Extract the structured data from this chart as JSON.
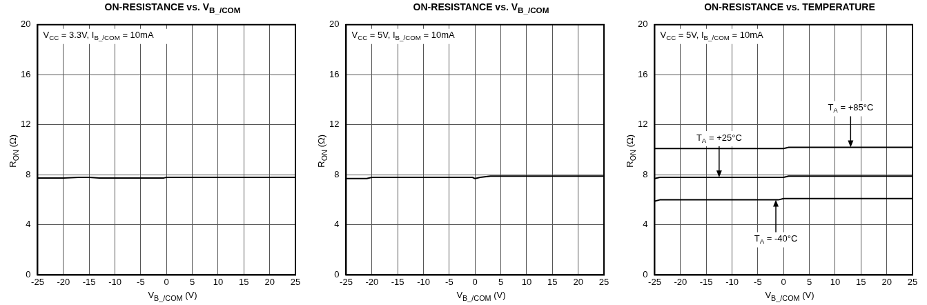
{
  "chart_data": [
    {
      "type": "line",
      "title": "ON-RESISTANCE vs. V$_{B_/COM}$",
      "xlabel": "V$_{B_/COM}$ (V)",
      "ylabel": "R$_{ON}$ (Ω)",
      "xlim": [
        -25,
        25
      ],
      "ylim": [
        0,
        20
      ],
      "xticks": [
        -25,
        -20,
        -15,
        -10,
        -5,
        0,
        5,
        10,
        15,
        20,
        25
      ],
      "yticks": [
        0,
        4,
        8,
        12,
        16,
        20
      ],
      "grid": true,
      "legend": false,
      "marker": "none",
      "x": [
        -25,
        -20,
        -17,
        -15,
        -13,
        -5,
        -0.5,
        0,
        25
      ],
      "series": [
        {
          "color": "#000000",
          "values": [
            7.75,
            7.75,
            7.8,
            7.8,
            7.75,
            7.75,
            7.75,
            7.8,
            7.8
          ]
        }
      ],
      "annotations": [
        "V$_{CC}$ = 3.3V, I$_{B_/COM}$ = 10mA"
      ]
    },
    {
      "type": "line",
      "title": "ON-RESISTANCE vs. V$_{B_/COM}$",
      "xlabel": "V$_{B_/COM}$ (V)",
      "ylabel": "R$_{ON}$ (Ω)",
      "xlim": [
        -25,
        25
      ],
      "ylim": [
        0,
        20
      ],
      "xticks": [
        -25,
        -20,
        -15,
        -10,
        -5,
        0,
        5,
        10,
        15,
        20,
        25
      ],
      "yticks": [
        0,
        4,
        8,
        12,
        16,
        20
      ],
      "grid": true,
      "legend": false,
      "marker": "none",
      "x": [
        -25,
        -21,
        -20,
        -0.5,
        0,
        1,
        3,
        25
      ],
      "series": [
        {
          "color": "#000000",
          "values": [
            7.7,
            7.7,
            7.8,
            7.8,
            7.7,
            7.8,
            7.9,
            7.9
          ]
        }
      ],
      "annotations": [
        "V$_{CC}$ = 5V, I$_{B_/COM}$ = 10mA"
      ]
    },
    {
      "type": "line",
      "title": "ON-RESISTANCE vs. TEMPERATURE",
      "xlabel": "V$_{B_/COM}$ (V)",
      "ylabel": "R$_{ON}$ (Ω)",
      "xlim": [
        -25,
        25
      ],
      "ylim": [
        0,
        20
      ],
      "xticks": [
        -25,
        -20,
        -15,
        -10,
        -5,
        0,
        5,
        10,
        15,
        20,
        25
      ],
      "yticks": [
        0,
        4,
        8,
        12,
        16,
        20
      ],
      "grid": true,
      "legend": false,
      "marker": "none",
      "series": [
        {
          "color": "#000000",
          "x": [
            -25,
            0,
            1,
            25
          ],
          "values": [
            10.1,
            10.1,
            10.2,
            10.2
          ]
        },
        {
          "color": "#000000",
          "x": [
            -25,
            -24,
            0,
            1,
            25
          ],
          "values": [
            7.7,
            7.8,
            7.8,
            7.9,
            7.9
          ]
        },
        {
          "color": "#000000",
          "x": [
            -25,
            -24,
            -1,
            0,
            25
          ],
          "values": [
            5.9,
            6.0,
            6.0,
            6.1,
            6.1
          ]
        }
      ],
      "annotations": [
        "V$_{CC}$ = 5V, I$_{B_/COM}$ = 10mA",
        {
          "text": "T$_{A}$ = +85°C",
          "x": 13,
          "y": 10.2
        },
        {
          "text": "T$_{A}$ = +25°C",
          "x": -12.5,
          "y": 7.8
        },
        {
          "text": "T$_{A}$ = -40°C",
          "x": -1.5,
          "y": 6.0
        }
      ]
    }
  ]
}
